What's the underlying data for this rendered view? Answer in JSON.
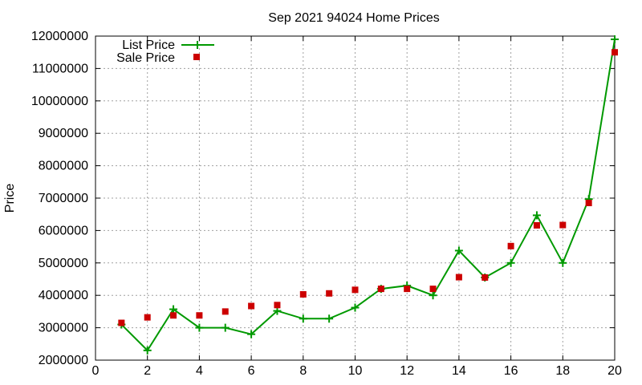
{
  "chart_data": {
    "type": "line",
    "title": "Sep 2021 94024 Home Prices",
    "xlabel": "",
    "ylabel": "Price",
    "xlim": [
      0,
      20
    ],
    "ylim": [
      2000000,
      12000000
    ],
    "x_ticks": [
      0,
      2,
      4,
      6,
      8,
      10,
      12,
      14,
      16,
      18,
      20
    ],
    "y_ticks": [
      2000000,
      3000000,
      4000000,
      5000000,
      6000000,
      7000000,
      8000000,
      9000000,
      10000000,
      11000000,
      12000000
    ],
    "grid": true,
    "legend_position": "top-left",
    "series": [
      {
        "name": "List Price",
        "style": "line-with-plus-markers",
        "color": "#009900",
        "x": [
          1,
          2,
          3,
          4,
          5,
          6,
          7,
          8,
          9,
          10,
          11,
          12,
          13,
          14,
          15,
          16,
          17,
          18,
          19,
          20
        ],
        "values": [
          3100000,
          2300000,
          3570000,
          3000000,
          3000000,
          2800000,
          3520000,
          3280000,
          3280000,
          3620000,
          4200000,
          4300000,
          4000000,
          5380000,
          4550000,
          5000000,
          6470000,
          5000000,
          6970000,
          11900000
        ]
      },
      {
        "name": "Sale Price",
        "style": "square-markers",
        "color": "#cc0000",
        "x": [
          1,
          2,
          3,
          4,
          5,
          6,
          7,
          8,
          9,
          10,
          11,
          12,
          13,
          14,
          15,
          16,
          17,
          18,
          19,
          20
        ],
        "values": [
          3150000,
          3320000,
          3380000,
          3380000,
          3500000,
          3670000,
          3700000,
          4030000,
          4060000,
          4170000,
          4200000,
          4200000,
          4200000,
          4560000,
          4550000,
          5520000,
          6160000,
          6170000,
          6850000,
          11500000
        ]
      }
    ]
  }
}
